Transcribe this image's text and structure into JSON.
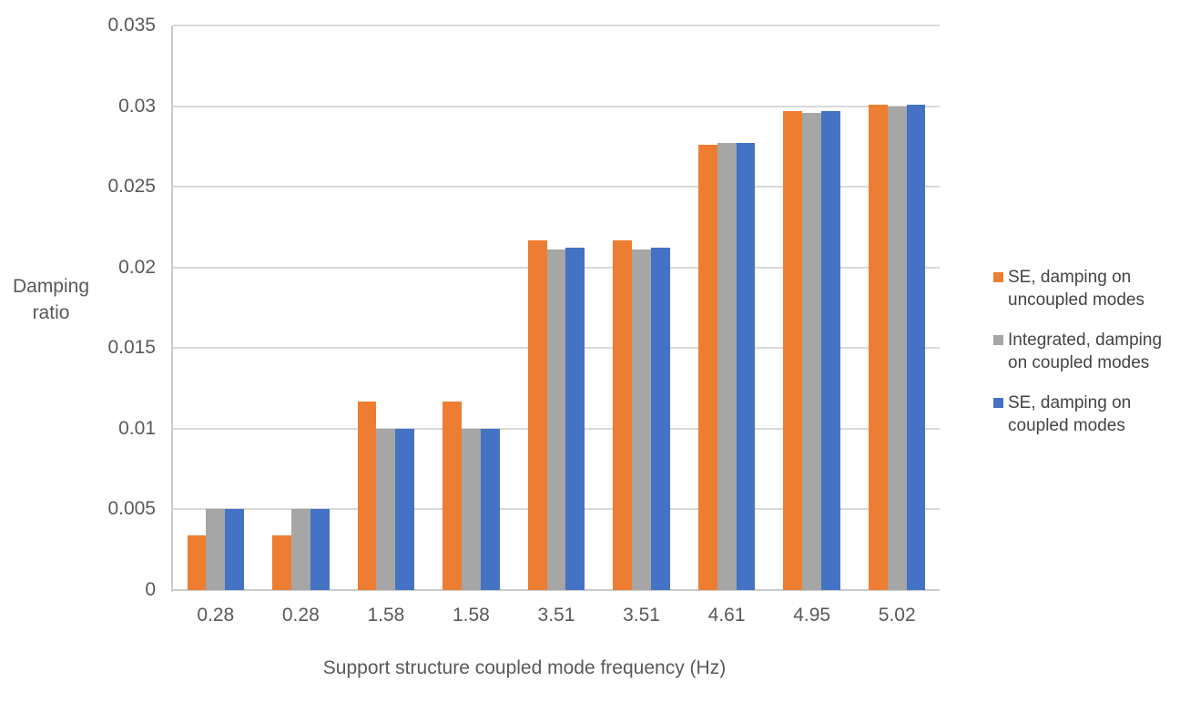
{
  "chart_data": {
    "type": "bar",
    "title": "",
    "xlabel": "Support structure coupled mode frequency (Hz)",
    "ylabel": "Damping ratio",
    "ylabel_lines": [
      "Damping",
      "ratio"
    ],
    "categories": [
      "0.28",
      "0.28",
      "1.58",
      "1.58",
      "3.51",
      "3.51",
      "4.61",
      "4.95",
      "5.02"
    ],
    "series": [
      {
        "name": "SE, damping on uncoupled modes",
        "legend_lines": [
          "SE, damping on",
          "uncoupled modes"
        ],
        "color": "#ED7D31",
        "values": [
          0.0034,
          0.0034,
          0.0117,
          0.0117,
          0.0217,
          0.0217,
          0.0276,
          0.0297,
          0.0301
        ]
      },
      {
        "name": "Integrated, damping on coupled modes",
        "legend_lines": [
          "Integrated, damping",
          "on coupled modes"
        ],
        "color": "#A6A6A6",
        "values": [
          0.005,
          0.005,
          0.01,
          0.01,
          0.0211,
          0.0211,
          0.0277,
          0.0296,
          0.03
        ]
      },
      {
        "name": "SE, damping on coupled modes",
        "legend_lines": [
          "SE, damping on",
          "coupled modes"
        ],
        "color": "#4472C4",
        "values": [
          0.005,
          0.005,
          0.01,
          0.01,
          0.0212,
          0.0212,
          0.0277,
          0.0297,
          0.0301
        ]
      }
    ],
    "y_ticks": [
      "0",
      "0.005",
      "0.01",
      "0.015",
      "0.02",
      "0.025",
      "0.03",
      "0.035"
    ],
    "ylim": [
      0,
      0.035
    ],
    "grid": true,
    "legend_position": "right",
    "colors": {
      "gridline": "#D9D9D9",
      "axis_line": "#CBCBCB",
      "axis_text": "#595959",
      "legend_text": "#444444"
    }
  }
}
